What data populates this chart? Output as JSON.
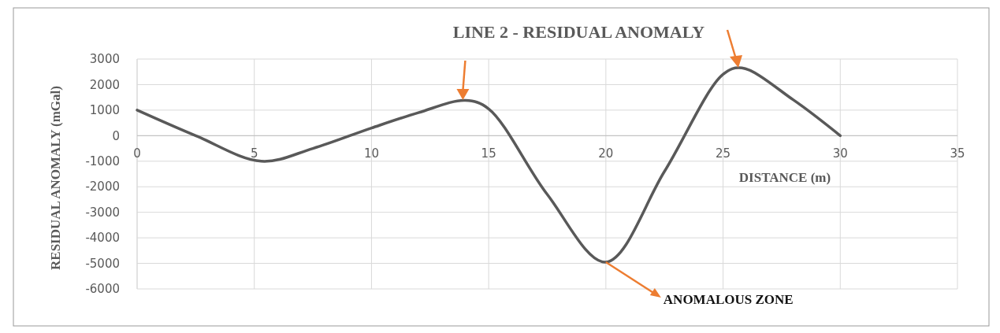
{
  "chart_data": {
    "type": "line",
    "title": "LINE 2 - RESIDUAL ANOMALY",
    "xlabel": "DISTANCE (m)",
    "ylabel": "RESIDUAL ANOMALY (mGal)",
    "x": [
      0,
      2.5,
      5.3,
      7.5,
      10,
      12,
      14,
      15,
      17.5,
      20,
      22.5,
      25,
      25.8,
      28,
      30
    ],
    "series": [
      {
        "color": "#595959",
        "values": [
          1000,
          0,
          -1000,
          -500,
          300,
          900,
          1380,
          1050,
          -2300,
          -4950,
          -1400,
          2400,
          2650,
          1400,
          0
        ]
      }
    ],
    "xlim": [
      0,
      35
    ],
    "xticks": [
      0,
      5,
      10,
      15,
      20,
      25,
      30,
      35
    ],
    "ylim": [
      -6000,
      3000
    ],
    "yticks": [
      -6000,
      -5000,
      -4000,
      -3000,
      -2000,
      -1000,
      0,
      1000,
      2000,
      3000
    ],
    "grid": true,
    "marker": "none",
    "annotations": [
      {
        "text": "ANOMALOUS ZONE",
        "x": 20,
        "y": -4950
      }
    ]
  }
}
